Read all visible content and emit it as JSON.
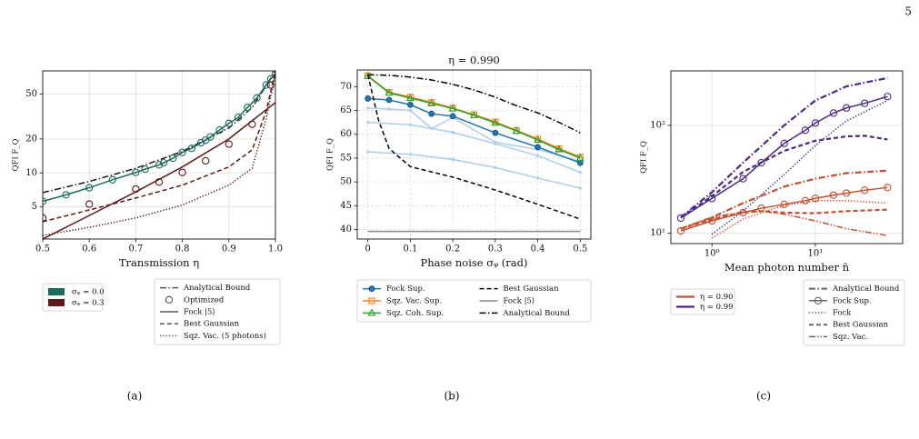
{
  "page_number": "5",
  "captions": [
    "(a)",
    "(b)",
    "(c)"
  ],
  "chart_data": [
    {
      "type": "line",
      "xlabel": "Transmission η",
      "ylabel": "QFI F_Q",
      "yscale": "log",
      "grid": true,
      "xlim": [
        0.5,
        1.0
      ],
      "ylim": [
        2.6,
        80
      ],
      "xticks": [
        0.5,
        0.6,
        0.7,
        0.8,
        0.9,
        {
          "value": 1.0,
          "label": "1.0"
        }
      ],
      "yticks": [
        5,
        10,
        20,
        50
      ],
      "series": [
        {
          "color": "#2b1616",
          "dash": "dashdot",
          "x": [
            0.5,
            0.6,
            0.7,
            0.8,
            0.9,
            0.95,
            1.0
          ],
          "values": [
            6.7,
            8.4,
            11,
            15.5,
            25,
            38,
            80
          ]
        },
        {
          "color": "#1d6b5c",
          "dash": "solid",
          "marker": "circle",
          "x": [
            0.5,
            0.55,
            0.6,
            0.65,
            0.7,
            0.72,
            0.75,
            0.76,
            0.78,
            0.8,
            0.82,
            0.84,
            0.85,
            0.86,
            0.88,
            0.9,
            0.92,
            0.94,
            0.96,
            0.98,
            0.99,
            1.0
          ],
          "values": [
            5.6,
            6.4,
            7.4,
            8.7,
            10.1,
            10.8,
            11.8,
            12.3,
            13.5,
            15.2,
            16.5,
            18.5,
            19.5,
            20.8,
            24,
            27.5,
            31,
            38,
            46,
            60,
            68,
            75
          ]
        },
        {
          "color": "#5c1a1a",
          "dash": "solid",
          "x": [
            0.5,
            0.6,
            0.7,
            0.8,
            0.9,
            1.0
          ],
          "values": [
            2.6,
            4.2,
            6.8,
            11.3,
            20,
            42
          ]
        },
        {
          "color": "#5c1a1a",
          "dash": "none",
          "marker": "circle",
          "x": [
            0.5,
            0.6,
            0.7,
            0.75,
            0.8,
            0.85,
            0.9,
            0.95,
            0.99
          ],
          "values": [
            4,
            5.3,
            7.2,
            8.3,
            10.1,
            12.8,
            18,
            27,
            60
          ]
        },
        {
          "color": "#5c1a1a",
          "dash": "dashed",
          "x": [
            0.5,
            0.6,
            0.7,
            0.8,
            0.9,
            0.95,
            0.98,
            1.0
          ],
          "values": [
            3.7,
            4.7,
            6,
            7.8,
            11.3,
            16,
            35,
            80
          ]
        },
        {
          "color": "#5c1a1a",
          "dash": "dotted",
          "x": [
            0.5,
            0.6,
            0.7,
            0.8,
            0.9,
            0.95,
            0.98,
            1.0
          ],
          "values": [
            2.8,
            3.3,
            4,
            5.2,
            7.8,
            11,
            30,
            75
          ]
        }
      ],
      "legends": [
        {
          "entries": [
            {
              "label": "σᵩ = 0.0",
              "color": "#1d6b5c",
              "patch": true
            },
            {
              "label": "σᵩ = 0.3",
              "color": "#5c1a1a",
              "patch": true
            }
          ]
        },
        {
          "entries": [
            {
              "label": "Analytical Bound",
              "color": "#555555",
              "dash": "dashdot"
            },
            {
              "label": "Optimized",
              "color": "#555555",
              "dash": "none",
              "marker": "circle"
            },
            {
              "label": "Fock |5⟩",
              "color": "#555555",
              "dash": "solid"
            },
            {
              "label": "Best Gaussian",
              "color": "#555555",
              "dash": "dashed"
            },
            {
              "label": "Sqz. Vac. (5 photons)",
              "color": "#555555",
              "dash": "dotted"
            }
          ]
        }
      ]
    },
    {
      "type": "line",
      "title": "η = 0.990",
      "xlabel": "Phase noise σᵩ (rad)",
      "ylabel": "QFI F_Q",
      "grid": true,
      "xlim": [
        -0.025,
        0.525
      ],
      "ylim": [
        38,
        73.5
      ],
      "xticks": [
        0,
        0.1,
        0.2,
        0.3,
        0.4,
        0.5
      ],
      "yticks": [
        40,
        45,
        50,
        55,
        60,
        65,
        70
      ],
      "series": [
        {
          "color": "#aecde8",
          "dash": "solid",
          "marker": "dot",
          "x": [
            0,
            0.05,
            0.1,
            0.15,
            0.2,
            0.3,
            0.4,
            0.5
          ],
          "values": [
            65.5,
            65.3,
            65,
            61.2,
            63.5,
            58.3,
            56.8,
            54.3
          ]
        },
        {
          "color": "#aecde8",
          "dash": "solid",
          "marker": "dot",
          "x": [
            0,
            0.1,
            0.2,
            0.3,
            0.4,
            0.5
          ],
          "values": [
            62.5,
            62,
            60.4,
            58,
            55.5,
            52
          ]
        },
        {
          "color": "#aecde8",
          "dash": "solid",
          "marker": "dot",
          "x": [
            0,
            0.1,
            0.2,
            0.3,
            0.4,
            0.5
          ],
          "values": [
            56.3,
            55.8,
            54.7,
            53,
            50.8,
            48.7
          ]
        },
        {
          "name": "Fock Sup.",
          "color": "#1f77b4",
          "dash": "solid",
          "marker": "circle-filled",
          "x": [
            0,
            0.05,
            0.1,
            0.15,
            0.2,
            0.3,
            0.4,
            0.5
          ],
          "values": [
            67.5,
            67.2,
            66.2,
            64.3,
            63.8,
            60.3,
            57.3,
            54
          ]
        },
        {
          "name": "Sqz. Vac. Sup.",
          "color": "#ff7f0e",
          "dash": "solid",
          "marker": "square",
          "x": [
            0,
            0.05,
            0.1,
            0.15,
            0.2,
            0.25,
            0.3,
            0.35,
            0.4,
            0.45,
            0.5
          ],
          "values": [
            72.3,
            68.8,
            67.8,
            66.7,
            65.5,
            64.1,
            62.6,
            60.8,
            59,
            57,
            55.2
          ]
        },
        {
          "name": "Sqz. Coh. Sup.",
          "color": "#2ca02c",
          "dash": "solid",
          "marker": "triangle",
          "x": [
            0,
            0.05,
            0.1,
            0.15,
            0.2,
            0.25,
            0.3,
            0.35,
            0.4,
            0.45,
            0.5
          ],
          "values": [
            72.2,
            68.7,
            67.6,
            66.5,
            65.4,
            64,
            62.4,
            60.7,
            58.8,
            56.8,
            55
          ]
        },
        {
          "name": "Best Gaussian",
          "color": "#000000",
          "dash": "dashed",
          "x": [
            0,
            0.025,
            0.05,
            0.1,
            0.2,
            0.3,
            0.4,
            0.5
          ],
          "values": [
            72.5,
            63,
            57,
            53.2,
            51,
            48.3,
            45.3,
            42.2
          ]
        },
        {
          "name": "Fock |5⟩",
          "color": "#888888",
          "dash": "solid",
          "x": [
            0,
            0.5
          ],
          "values": [
            39.6,
            39.6
          ]
        },
        {
          "name": "Analytical Bound",
          "color": "#000000",
          "dash": "dashdot",
          "x": [
            0,
            0.05,
            0.1,
            0.15,
            0.2,
            0.25,
            0.3,
            0.35,
            0.4,
            0.45,
            0.5
          ],
          "values": [
            72.5,
            72.4,
            72,
            71.4,
            70.5,
            69.3,
            67.8,
            66,
            64.5,
            62.5,
            60.3
          ]
        }
      ]
    },
    {
      "type": "line",
      "xlabel": "Mean photon number n̄",
      "ylabel": "QFI F_Q",
      "xscale": "log",
      "yscale": "log",
      "grid": true,
      "xlim": [
        0.4,
        70
      ],
      "ylim": [
        8,
        320
      ],
      "xticks": [
        {
          "value": 1,
          "label": "10⁰"
        },
        {
          "value": 10,
          "label": "10¹"
        }
      ],
      "yticks": [
        {
          "value": 10,
          "label": "10¹"
        },
        {
          "value": 100,
          "label": "10²"
        }
      ],
      "series": [
        {
          "color": "#4b2a82",
          "dash": "dashdot",
          "width": 2.2,
          "x": [
            0.5,
            1,
            2,
            5,
            10,
            20,
            50
          ],
          "values": [
            14,
            24,
            45,
            100,
            170,
            230,
            275
          ]
        },
        {
          "color": "#4b2a82",
          "dash": "solid",
          "marker": "circle",
          "x": [
            0.5,
            1,
            2,
            3,
            5,
            8,
            10,
            15,
            20,
            30,
            50
          ],
          "values": [
            13.8,
            21,
            32,
            45,
            68,
            90,
            105,
            130,
            145,
            160,
            185
          ]
        },
        {
          "color": "#4b2a82",
          "dash": "dotted",
          "x": [
            1,
            2,
            5,
            10,
            20,
            50
          ],
          "values": [
            9.8,
            16,
            35,
            65,
            110,
            170
          ]
        },
        {
          "color": "#4b2a82",
          "dash": "dashed",
          "width": 2.2,
          "x": [
            0.5,
            1,
            2,
            5,
            10,
            20,
            30,
            50
          ],
          "values": [
            14,
            22,
            37,
            58,
            72,
            79,
            80,
            74
          ]
        },
        {
          "color": "#c4502f",
          "dash": "dashdot",
          "width": 2.2,
          "x": [
            0.5,
            1,
            2,
            5,
            10,
            20,
            50
          ],
          "values": [
            11,
            14,
            19,
            27,
            32,
            36,
            38
          ]
        },
        {
          "color": "#c4502f",
          "dash": "solid",
          "marker": "circle",
          "x": [
            0.5,
            1,
            2,
            3,
            5,
            8,
            10,
            15,
            20,
            30,
            50
          ],
          "values": [
            10.5,
            13,
            15.5,
            17,
            18.5,
            20,
            21,
            22.5,
            23.5,
            25,
            26.5
          ]
        },
        {
          "color": "#c4502f",
          "dash": "dotted",
          "x": [
            1,
            2,
            3,
            5,
            10,
            20,
            50
          ],
          "values": [
            9,
            13.5,
            15.5,
            18,
            20,
            20,
            19
          ]
        },
        {
          "color": "#c4502f",
          "dash": "dashed",
          "width": 2.2,
          "x": [
            0.5,
            1,
            2,
            3,
            5,
            10,
            20,
            50
          ],
          "values": [
            11,
            13.5,
            15.5,
            16,
            15.5,
            15.3,
            16,
            16.5
          ]
        },
        {
          "color": "#c4502f",
          "dash": "dashdotdot",
          "x": [
            0.5,
            1,
            2,
            3,
            5,
            10,
            20,
            50
          ],
          "values": [
            11,
            14,
            15.8,
            16,
            15,
            13,
            11,
            9.5
          ]
        }
      ],
      "legends": [
        {
          "entries": [
            {
              "label": "η = 0.90",
              "color": "#c4502f",
              "dash": "solid",
              "width": 2.2
            },
            {
              "label": "η = 0.99",
              "color": "#4b2a82",
              "dash": "solid",
              "width": 2.2
            }
          ]
        },
        {
          "entries": [
            {
              "label": "Analytical Bound",
              "color": "#666666",
              "dash": "dashdot",
              "width": 2
            },
            {
              "label": "Fock Sup.",
              "color": "#666666",
              "dash": "solid",
              "marker": "circle"
            },
            {
              "label": "Fock",
              "color": "#666666",
              "dash": "dotted"
            },
            {
              "label": "Best Gaussian",
              "color": "#666666",
              "dash": "dashed",
              "width": 2
            },
            {
              "label": "Sqz. Vac.",
              "color": "#666666",
              "dash": "dashdotdot"
            }
          ]
        }
      ]
    }
  ]
}
